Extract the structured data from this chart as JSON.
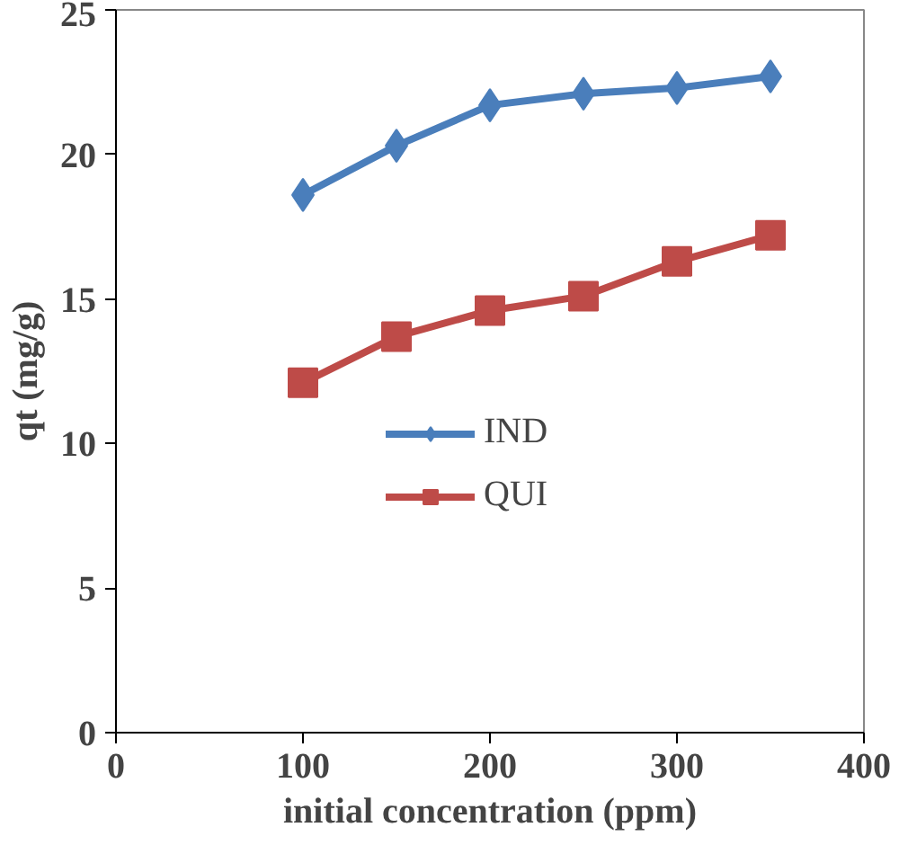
{
  "chart_data": {
    "type": "line",
    "xlabel": "initial concentration (ppm)",
    "ylabel": "qt (mg/g)",
    "x": [
      100,
      150,
      200,
      250,
      300,
      350
    ],
    "series": [
      {
        "name": "IND",
        "color": "#4a7ebb",
        "marker": "diamond",
        "values": [
          18.6,
          20.3,
          21.7,
          22.1,
          22.3,
          22.7
        ]
      },
      {
        "name": "QUI",
        "color": "#be4b48",
        "marker": "square",
        "values": [
          12.1,
          13.7,
          14.6,
          15.1,
          16.3,
          17.2
        ]
      }
    ],
    "xlim": [
      0,
      400
    ],
    "xticks": [
      0,
      100,
      200,
      300,
      400
    ],
    "ylim": [
      0,
      25
    ],
    "yticks": [
      0,
      5,
      10,
      15,
      20,
      25
    ],
    "grid": false,
    "legend": "center",
    "line_style": "solid"
  }
}
